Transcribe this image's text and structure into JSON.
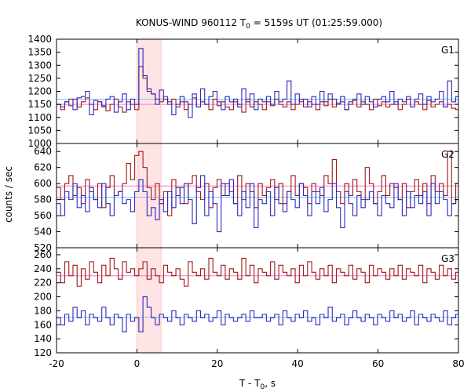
{
  "chart_data": {
    "type": "line",
    "title": "KONUS-WIND 960112 T",
    "title_sub": "0",
    "title_rest": " = 5159s UT (01:25:59.000)",
    "xlabel": "T - T",
    "xlabel_sub": "0",
    "xlabel_rest": ", s",
    "ylabel": "counts / sec",
    "xlim": [
      -20,
      80
    ],
    "x_ticks": [
      "-20",
      "0",
      "20",
      "40",
      "60",
      "80"
    ],
    "x_tick_values": [
      -20,
      0,
      20,
      40,
      60,
      80
    ],
    "highlight_band": [
      0,
      6
    ],
    "colors": {
      "blue": "#2b2bbd",
      "red": "#a01818",
      "blue_bg": "#7fc8f0",
      "red_bg": "#f07fd0",
      "band": "#ffe4e6",
      "band_edge": "#ffb8be"
    },
    "panels": [
      {
        "label": "G1",
        "ylim": [
          1000,
          1400
        ],
        "y_ticks": [
          "1000",
          "1050",
          "1100",
          "1150",
          "1200",
          "1250",
          "1300",
          "1350",
          "1400"
        ],
        "y_tick_values": [
          1000,
          1050,
          1100,
          1150,
          1200,
          1250,
          1300,
          1350,
          1400
        ],
        "bg_blue": 1170,
        "bg_red": 1150,
        "x_start": -20,
        "bin": 1.024,
        "blue": [
          1150,
          1140,
          1160,
          1170,
          1130,
          1175,
          1180,
          1200,
          1110,
          1165,
          1160,
          1140,
          1170,
          1180,
          1120,
          1160,
          1190,
          1130,
          1170,
          1150,
          1365,
          1260,
          1200,
          1190,
          1150,
          1205,
          1170,
          1160,
          1110,
          1150,
          1180,
          1160,
          1100,
          1190,
          1140,
          1210,
          1150,
          1180,
          1200,
          1160,
          1130,
          1180,
          1160,
          1170,
          1140,
          1210,
          1160,
          1190,
          1130,
          1170,
          1160,
          1180,
          1150,
          1200,
          1160,
          1170,
          1240,
          1150,
          1190,
          1160,
          1170,
          1140,
          1180,
          1150,
          1200,
          1160,
          1190,
          1170,
          1150,
          1180,
          1130,
          1160,
          1170,
          1190,
          1150,
          1180,
          1160,
          1140,
          1170,
          1180,
          1160,
          1200,
          1150,
          1170,
          1160,
          1180,
          1140,
          1170,
          1190,
          1150,
          1180,
          1160,
          1170,
          1200,
          1140,
          1240,
          1160,
          1180
        ],
        "red": [
          1150,
          1130,
          1160,
          1145,
          1170,
          1140,
          1160,
          1175,
          1150,
          1130,
          1160,
          1145,
          1125,
          1150,
          1170,
          1140,
          1120,
          1160,
          1150,
          1130,
          1295,
          1250,
          1210,
          1190,
          1170,
          1160,
          1180,
          1150,
          1170,
          1140,
          1160,
          1130,
          1150,
          1175,
          1140,
          1160,
          1150,
          1130,
          1170,
          1145,
          1160,
          1140,
          1130,
          1160,
          1150,
          1120,
          1170,
          1140,
          1160,
          1150,
          1130,
          1160,
          1145,
          1170,
          1150,
          1140,
          1160,
          1130,
          1150,
          1170,
          1140,
          1160,
          1150,
          1130,
          1160,
          1145,
          1170,
          1140,
          1155,
          1160,
          1130,
          1150,
          1165,
          1140,
          1160,
          1150,
          1130,
          1170,
          1145,
          1160,
          1140,
          1150,
          1160,
          1130,
          1150,
          1170,
          1140,
          1160,
          1150,
          1130,
          1165,
          1140,
          1150,
          1160,
          1140,
          1150,
          1135,
          1130
        ]
      },
      {
        "label": "G2",
        "ylim": [
          520,
          650
        ],
        "y_ticks": [
          "520",
          "540",
          "560",
          "580",
          "600",
          "620",
          "640"
        ],
        "y_tick_values": [
          520,
          540,
          560,
          580,
          600,
          620,
          640
        ],
        "bg_blue": 583,
        "bg_red": 597,
        "x_start": -20,
        "bin": 1.024,
        "blue": [
          575,
          560,
          590,
          580,
          600,
          570,
          585,
          565,
          595,
          580,
          570,
          600,
          575,
          560,
          585,
          590,
          575,
          580,
          565,
          590,
          605,
          590,
          560,
          570,
          555,
          580,
          565,
          590,
          570,
          595,
          575,
          600,
          580,
          550,
          595,
          610,
          560,
          590,
          575,
          540,
          600,
          585,
          605,
          575,
          560,
          590,
          570,
          600,
          545,
          580,
          575,
          590,
          560,
          595,
          575,
          565,
          590,
          580,
          570,
          600,
          585,
          560,
          590,
          575,
          595,
          565,
          580,
          600,
          570,
          545,
          590,
          575,
          560,
          585,
          570,
          580,
          590,
          575,
          560,
          585,
          575,
          570,
          600,
          580,
          560,
          590,
          570,
          585,
          575,
          590,
          560,
          600,
          575,
          590,
          580,
          560,
          575,
          580
        ],
        "red": [
          595,
          580,
          600,
          610,
          585,
          595,
          575,
          605,
          590,
          580,
          600,
          570,
          595,
          610,
          585,
          590,
          600,
          625,
          605,
          635,
          640,
          620,
          595,
          580,
          600,
          575,
          590,
          560,
          605,
          585,
          595,
          575,
          600,
          610,
          590,
          580,
          600,
          570,
          595,
          605,
          585,
          600,
          590,
          575,
          610,
          580,
          600,
          590,
          570,
          600,
          585,
          595,
          605,
          580,
          600,
          575,
          590,
          610,
          585,
          600,
          595,
          575,
          600,
          590,
          585,
          610,
          600,
          630,
          590,
          575,
          600,
          585,
          605,
          590,
          580,
          620,
          600,
          575,
          590,
          610,
          585,
          600,
          595,
          580,
          600,
          570,
          590,
          605,
          585,
          600,
          575,
          610,
          590,
          600,
          585,
          640,
          575,
          600
        ]
      },
      {
        "label": "G3",
        "ylim": [
          120,
          270
        ],
        "y_ticks": [
          "120",
          "140",
          "160",
          "180",
          "200",
          "220",
          "240",
          "260"
        ],
        "y_tick_values": [
          120,
          140,
          160,
          180,
          200,
          220,
          240,
          260
        ],
        "bg_blue": 171,
        "bg_red": 230,
        "x_start": -20,
        "bin": 1.024,
        "blue": [
          170,
          160,
          175,
          165,
          185,
          170,
          180,
          160,
          175,
          170,
          165,
          185,
          170,
          160,
          175,
          170,
          150,
          175,
          165,
          170,
          150,
          200,
          185,
          170,
          160,
          175,
          170,
          165,
          180,
          170,
          160,
          175,
          170,
          165,
          180,
          170,
          175,
          165,
          170,
          180,
          160,
          175,
          170,
          165,
          170,
          175,
          165,
          180,
          170,
          170,
          175,
          165,
          170,
          175,
          160,
          180,
          170,
          165,
          175,
          170,
          180,
          165,
          170,
          160,
          175,
          170,
          185,
          165,
          170,
          175,
          160,
          170,
          180,
          170,
          165,
          175,
          170,
          160,
          175,
          170,
          165,
          180,
          170,
          175,
          165,
          170,
          180,
          160,
          175,
          170,
          165,
          175,
          170,
          165,
          180,
          160,
          170,
          175
        ],
        "red": [
          235,
          220,
          250,
          230,
          245,
          215,
          240,
          225,
          250,
          235,
          220,
          245,
          230,
          255,
          240,
          225,
          250,
          235,
          240,
          230,
          240,
          250,
          225,
          240,
          230,
          220,
          245,
          235,
          230,
          240,
          225,
          215,
          250,
          235,
          230,
          240,
          225,
          255,
          235,
          230,
          245,
          225,
          240,
          235,
          225,
          255,
          230,
          245,
          220,
          240,
          235,
          230,
          250,
          225,
          245,
          235,
          230,
          240,
          220,
          245,
          230,
          250,
          235,
          225,
          240,
          230,
          245,
          220,
          240,
          235,
          230,
          245,
          225,
          240,
          235,
          220,
          245,
          230,
          240,
          235,
          225,
          240,
          230,
          245,
          225,
          240,
          235,
          230,
          245,
          220,
          240,
          235,
          225,
          245,
          230,
          240,
          225,
          235
        ]
      }
    ]
  }
}
